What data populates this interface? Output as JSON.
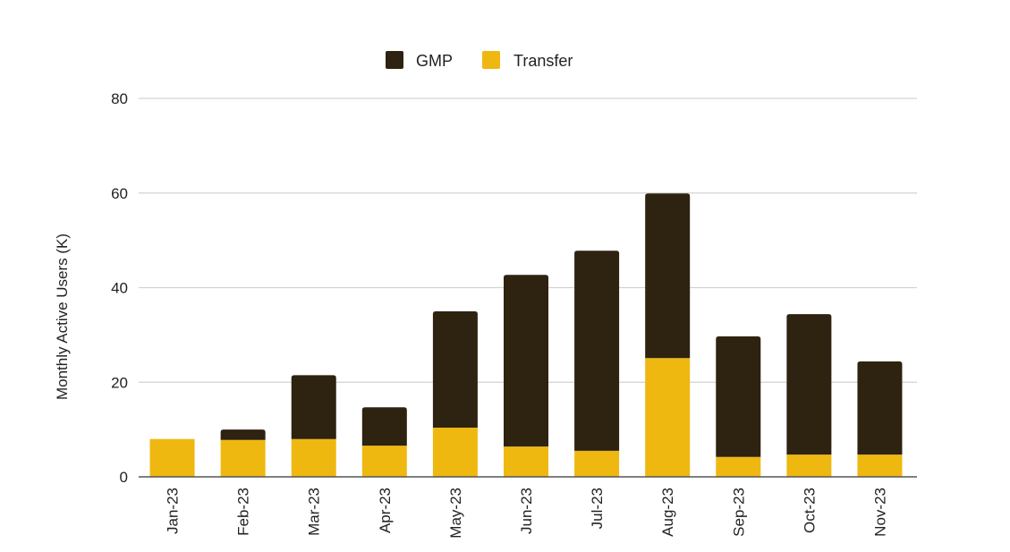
{
  "chart_data": {
    "type": "bar",
    "stacked": true,
    "title": "",
    "xlabel": "",
    "ylabel": "Monthly Active Users (K)",
    "ylim": [
      0,
      80
    ],
    "yticks": [
      "0",
      "20",
      "40",
      "60",
      "80"
    ],
    "grid": true,
    "legend_position": "top-center",
    "categories": [
      "Jan-23",
      "Feb-23",
      "Mar-23",
      "Apr-23",
      "May-23",
      "Jun-23",
      "Jul-23",
      "Aug-23",
      "Sep-23",
      "Oct-23",
      "Nov-23"
    ],
    "series": [
      {
        "name": "Transfer",
        "color": "#eeb811",
        "values": [
          8.0,
          7.8,
          8.0,
          6.6,
          10.4,
          6.4,
          5.5,
          25.1,
          4.2,
          4.7,
          4.7
        ]
      },
      {
        "name": "GMP",
        "color": "#2e2210",
        "values": [
          0.0,
          2.2,
          13.5,
          8.1,
          24.6,
          36.3,
          42.3,
          34.8,
          25.5,
          29.7,
          19.7
        ]
      }
    ],
    "legend": [
      {
        "label": "GMP",
        "color": "#2e2210"
      },
      {
        "label": "Transfer",
        "color": "#eeb811"
      }
    ],
    "colors": {
      "grid": "#d3d3d3",
      "baseline": "#555555",
      "text": "#222222"
    }
  }
}
